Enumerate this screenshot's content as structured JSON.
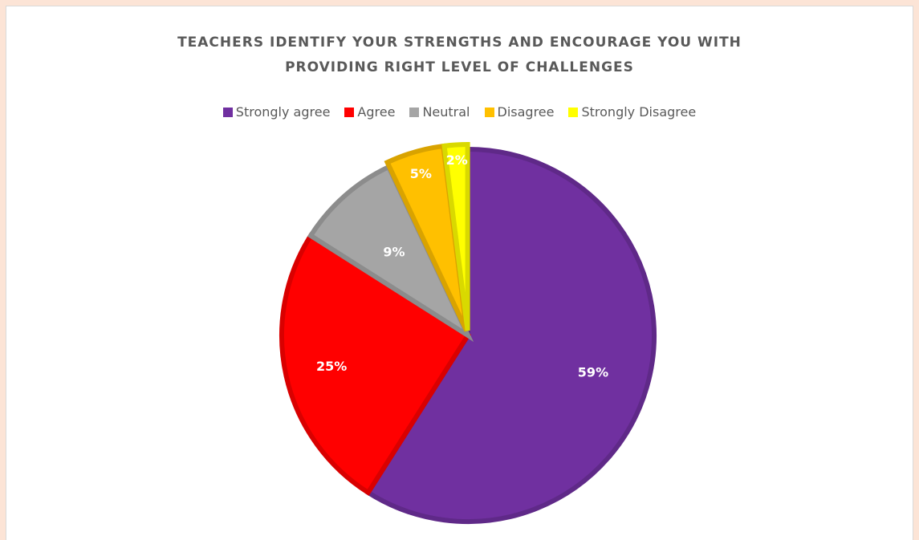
{
  "page": {
    "background": "#fce4d6"
  },
  "chart_data": {
    "type": "pie",
    "title_lines": [
      "TEACHERS IDENTIFY YOUR STRENGTHS AND ENCOURAGE YOU WITH",
      "PROVIDING RIGHT LEVEL OF CHALLENGES"
    ],
    "legend_position": "top",
    "slices": [
      {
        "label": "Strongly agree",
        "value": 59,
        "data_label": "59%",
        "color": "#7030a0"
      },
      {
        "label": "Agree",
        "value": 25,
        "data_label": "25%",
        "color": "#ff0000"
      },
      {
        "label": "Neutral",
        "value": 9,
        "data_label": "9%",
        "color": "#a5a5a5"
      },
      {
        "label": "Disagree",
        "value": 5,
        "data_label": "5%",
        "color": "#ffc000"
      },
      {
        "label": "Strongly Disagree",
        "value": 2,
        "data_label": "2%",
        "color": "#ffff00"
      }
    ]
  }
}
